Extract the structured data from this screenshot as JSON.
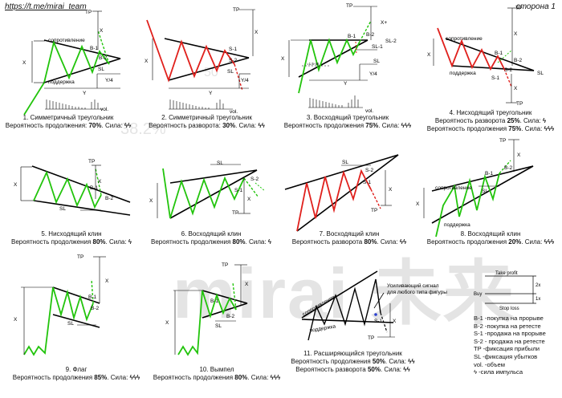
{
  "header": {
    "channel_url": "https://t.me/mirai_team",
    "page": "сторона 1"
  },
  "watermark": {
    "brand": "mirai",
    "hieroglyphs": "未来",
    "pct1": "38.2%",
    "pct2": "50"
  },
  "labels": {
    "resistance": "сопротивление",
    "support": "поддержка",
    "b1": "B-1",
    "b2": "B-2",
    "s1": "S-1",
    "s2": "S-2",
    "tp": "TP",
    "sl": "SL",
    "sl1": "SL-1",
    "sl2": "SL-2",
    "x": "X",
    "xplus": "X+",
    "y": "Y",
    "y4": "Y/4",
    "vol": "vol.",
    "x1545": "=1,5-45",
    "amplifying_signal": "Усиливающий сигнал",
    "for_any_figure": "для любого типа фигуры"
  },
  "patterns": [
    {
      "title": "1. Симметричный треугольник",
      "line2_text": "Вероятность продолжения: ",
      "prob": "70%",
      "strength_label": ". Сила: ",
      "strength": "ϟϟ"
    },
    {
      "title": "2. Симметричный треугольник",
      "line2_text": "Вероятность разворота: ",
      "prob": "30%",
      "strength_label": ". Сила: ",
      "strength": "ϟϟ"
    },
    {
      "title": "3. Восходящий треугольник",
      "line2_text": "Вероятность продолжения ",
      "prob": "75%",
      "strength_label": ". Сила: ",
      "strength": "ϟϟϟ"
    },
    {
      "title": "4. Нисходящий треугольник",
      "line2_text": "Вероятность разворота ",
      "prob": "25%",
      "strength_label": ". Сила: ",
      "strength": "ϟ",
      "line3_text": "Вероятность продолжения ",
      "prob2": "75%",
      "strength2": "ϟϟϟ"
    },
    {
      "title": "5. Нисходящий клин",
      "line2_text": "Вероятность продолжения ",
      "prob": "80%",
      "strength_label": ". Сила: ",
      "strength": "ϟ"
    },
    {
      "title": "6. Восходящий клин",
      "line2_text": "Вероятность продолжения ",
      "prob": "80%",
      "strength_label": ". Сила: ",
      "strength": "ϟ"
    },
    {
      "title": "7. Восходящий клин",
      "line2_text": "Вероятность разворота ",
      "prob": "80%",
      "strength_label": ". Сила: ",
      "strength": "ϟϟ"
    },
    {
      "title": "8. Восходящий клин",
      "line2_text": "Вероятность продолжения ",
      "prob": "20%",
      "strength_label": ". Сила: ",
      "strength": "ϟϟϟ"
    },
    {
      "title": "9. Флаг",
      "line2_text": "Вероятность продолжения ",
      "prob": "85%",
      "strength_label": ". Сила: ",
      "strength": "ϟϟϟ"
    },
    {
      "title": "10. Вымпел",
      "line2_text": "Вероятность продолжения ",
      "prob": "80%",
      "strength_label": ". Сила: ",
      "strength": "ϟϟϟ"
    },
    {
      "title": "11. Расширяющийся треугольник",
      "line2_text": "Вероятность продолжения ",
      "prob": "50%",
      "strength_label": ". Сила: ",
      "strength": "ϟϟ",
      "line3_text": "Вероятность разворота ",
      "prob2": "50%",
      "strength2": "ϟϟ"
    }
  ],
  "scheme": {
    "take_profit": "Take profit",
    "buy": "Buy",
    "stop_loss": "Stop loss",
    "two_x": "2x",
    "one_x": "1x"
  },
  "legend": [
    "B-1 -покупка на прорыве",
    "B-2 -покупка на ретесте",
    "S-1 -продажа на прорыве",
    "S-2 - продажа на ретесте",
    "TP -фиксация прибыли",
    "SL -фиксация убытков",
    "vol. -объем",
    "ϟ  -сила импульса"
  ],
  "colors": {
    "up": "#22c40c",
    "down": "#e0201c",
    "blue": "#2a3fd0",
    "line": "#000000",
    "watermark": "#e4e4e4"
  }
}
